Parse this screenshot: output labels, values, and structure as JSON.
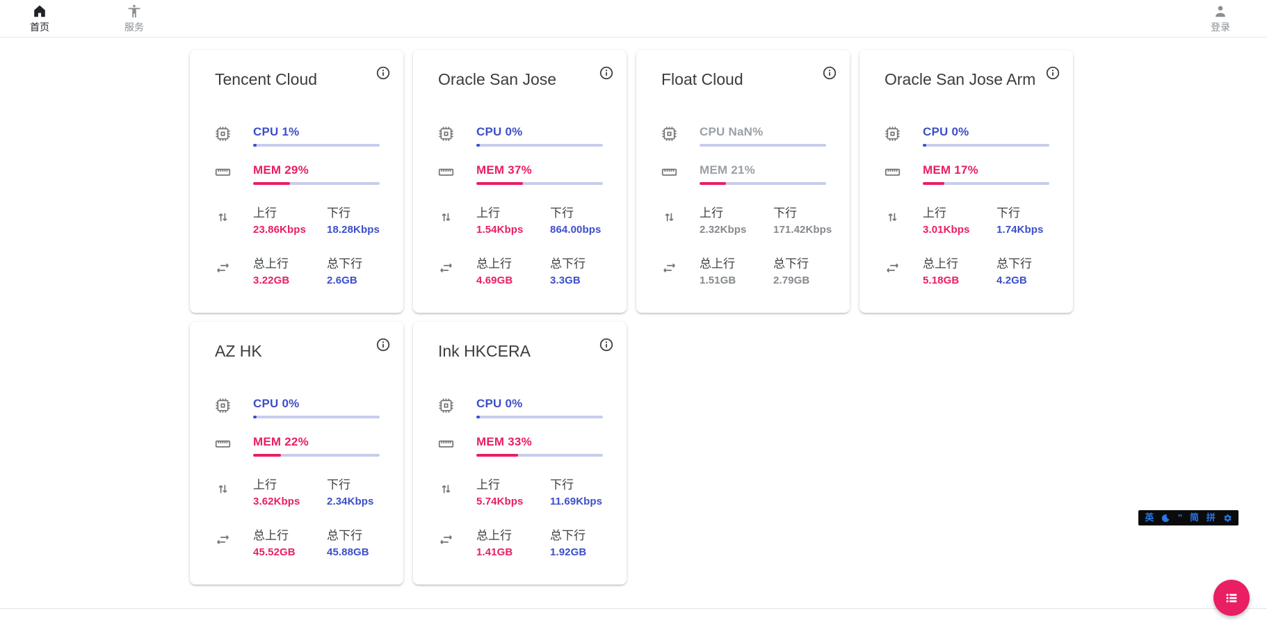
{
  "header": {
    "nav": [
      {
        "label": "首页",
        "icon": "home-icon",
        "active": true
      },
      {
        "label": "服务",
        "icon": "services-person-icon",
        "active": false
      }
    ],
    "login": {
      "label": "登录",
      "icon": "person-icon"
    }
  },
  "labels": {
    "cpu": "CPU",
    "mem": "MEM",
    "up": "上行",
    "down": "下行",
    "total_up": "总上行",
    "total_down": "总下行"
  },
  "colors": {
    "accent_pink": "#e91e63",
    "accent_blue": "#3c4ec9",
    "bar_track": "#c9cdec",
    "disabled_gray": "#9aa0a6",
    "ime_blue": "#2677e8"
  },
  "servers": [
    {
      "name": "Tencent Cloud",
      "cpu": "1%",
      "cpu_pct": 1,
      "mem": "29%",
      "mem_pct": 29,
      "up": "23.86Kbps",
      "down": "18.28Kbps",
      "total_up": "3.22GB",
      "total_down": "2.6GB",
      "offline": false
    },
    {
      "name": "Oracle San Jose",
      "cpu": "0%",
      "cpu_pct": 0,
      "mem": "37%",
      "mem_pct": 37,
      "up": "1.54Kbps",
      "down": "864.00bps",
      "total_up": "4.69GB",
      "total_down": "3.3GB",
      "offline": false
    },
    {
      "name": "Float Cloud",
      "cpu": "NaN%",
      "cpu_pct": null,
      "mem": "21%",
      "mem_pct": 21,
      "up": "2.32Kbps",
      "down": "171.42Kbps",
      "total_up": "1.51GB",
      "total_down": "2.79GB",
      "offline": true
    },
    {
      "name": "Oracle San Jose Arm",
      "cpu": "0%",
      "cpu_pct": 0,
      "mem": "17%",
      "mem_pct": 17,
      "up": "3.01Kbps",
      "down": "1.74Kbps",
      "total_up": "5.18GB",
      "total_down": "4.2GB",
      "offline": false
    },
    {
      "name": "AZ HK",
      "cpu": "0%",
      "cpu_pct": 0,
      "mem": "22%",
      "mem_pct": 22,
      "up": "3.62Kbps",
      "down": "2.34Kbps",
      "total_up": "45.52GB",
      "total_down": "45.88GB",
      "offline": false
    },
    {
      "name": "Ink HKCERA",
      "cpu": "0%",
      "cpu_pct": 0,
      "mem": "33%",
      "mem_pct": 33,
      "up": "5.74Kbps",
      "down": "11.69Kbps",
      "total_up": "1.41GB",
      "total_down": "1.92GB",
      "offline": false
    }
  ],
  "ime_bar": {
    "lang": "英",
    "punct": "''",
    "simplified": "简",
    "pinyin": "拼"
  }
}
